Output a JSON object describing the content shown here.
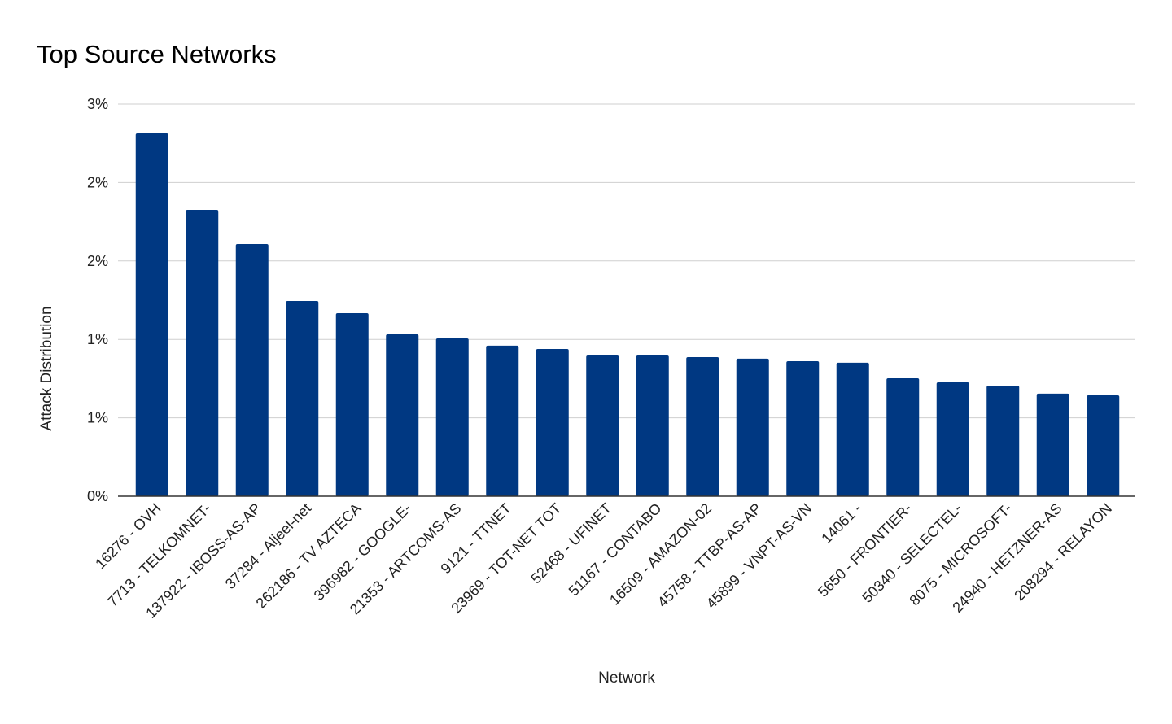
{
  "chart_data": {
    "type": "bar",
    "title": "Top Source Networks",
    "x_label": "Network",
    "y_label": "Attack Distribution",
    "categories": [
      "16276 - OVH",
      "7713 - TELKOMNET-",
      "137922 - IBOSS-AS-AP",
      "37284 - Aljeel-net",
      "262186 - TV AZTECA",
      "396982 - GOOGLE-",
      "21353 - ARTCOMS-AS",
      "9121 - TTNET",
      "23969 - TOT-NET TOT",
      "52468 - UFINET",
      "51167 - CONTABO",
      "16509 - AMAZON-02",
      "45758 - TTBP-AS-AP",
      "45899 - VNPT-AS-VN",
      "14061 -",
      "5650 - FRONTIER-",
      "50340 - SELECTEL-",
      "8075 - MICROSOFT-",
      "24940 - HETZNER-AS",
      "208294 - RELAYON"
    ],
    "values": [
      2.313,
      1.826,
      1.608,
      1.245,
      1.167,
      1.032,
      1.006,
      0.96,
      0.939,
      0.897,
      0.897,
      0.887,
      0.877,
      0.861,
      0.851,
      0.752,
      0.726,
      0.705,
      0.654,
      0.643
    ],
    "color": "#003882",
    "ylim": [
      0,
      2.5
    ],
    "yticks": [
      {
        "value": 0,
        "label": "0%"
      },
      {
        "value": 0.5,
        "label": "1%"
      },
      {
        "value": 1,
        "label": "1%"
      },
      {
        "value": 1.5,
        "label": "2%"
      },
      {
        "value": 2,
        "label": "2%"
      },
      {
        "value": 2.5,
        "label": "3%"
      }
    ],
    "grid": true
  }
}
